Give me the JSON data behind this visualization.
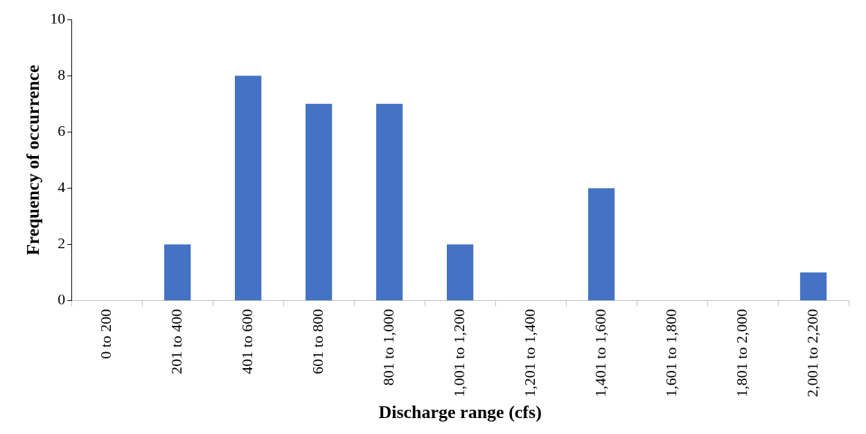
{
  "chart_data": {
    "type": "bar",
    "xlabel": "Discharge range (cfs)",
    "ylabel": "Frequency of occurrence",
    "categories": [
      "0 to 200",
      "201 to 400",
      "401 to 600",
      "601 to 800",
      "801 to 1,000",
      "1,001 to 1,200",
      "1,201 to 1,400",
      "1,401 to 1,600",
      "1,601 to 1,800",
      "1,801 to 2,000",
      "2,001 to 2,200"
    ],
    "values": [
      0,
      2,
      8,
      7,
      7,
      2,
      0,
      4,
      0,
      0,
      1
    ],
    "color": "#4472c4",
    "ylim": [
      0,
      10
    ],
    "yticks": [
      0,
      2,
      4,
      6,
      8,
      10
    ],
    "legend": false
  }
}
